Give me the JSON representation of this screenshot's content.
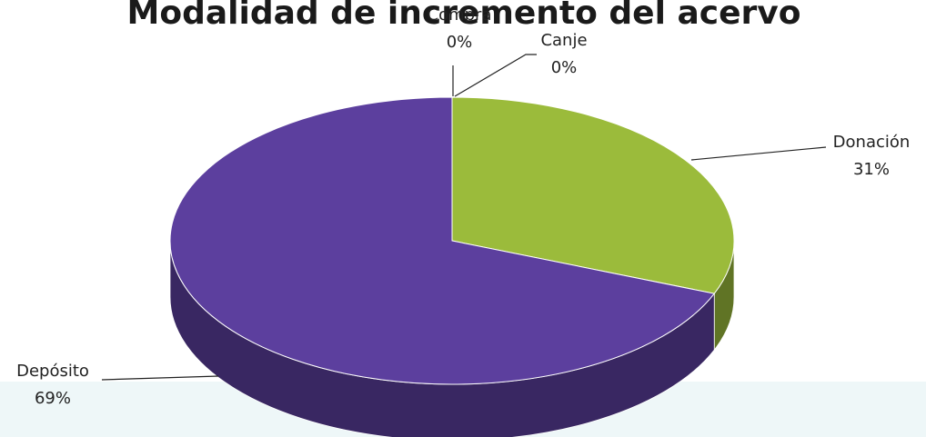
{
  "chart_data": {
    "type": "pie",
    "title": "Modalidad de incremento del acervo",
    "categories": [
      "Compra",
      "Canje",
      "Donación",
      "Depósito"
    ],
    "values": [
      0,
      0,
      31,
      69
    ],
    "value_labels": [
      "0%",
      "0%",
      "31%",
      "69%"
    ],
    "colors": [
      "#4f81bd",
      "#c0504d",
      "#9bbb3b",
      "#5c3f9e"
    ]
  }
}
